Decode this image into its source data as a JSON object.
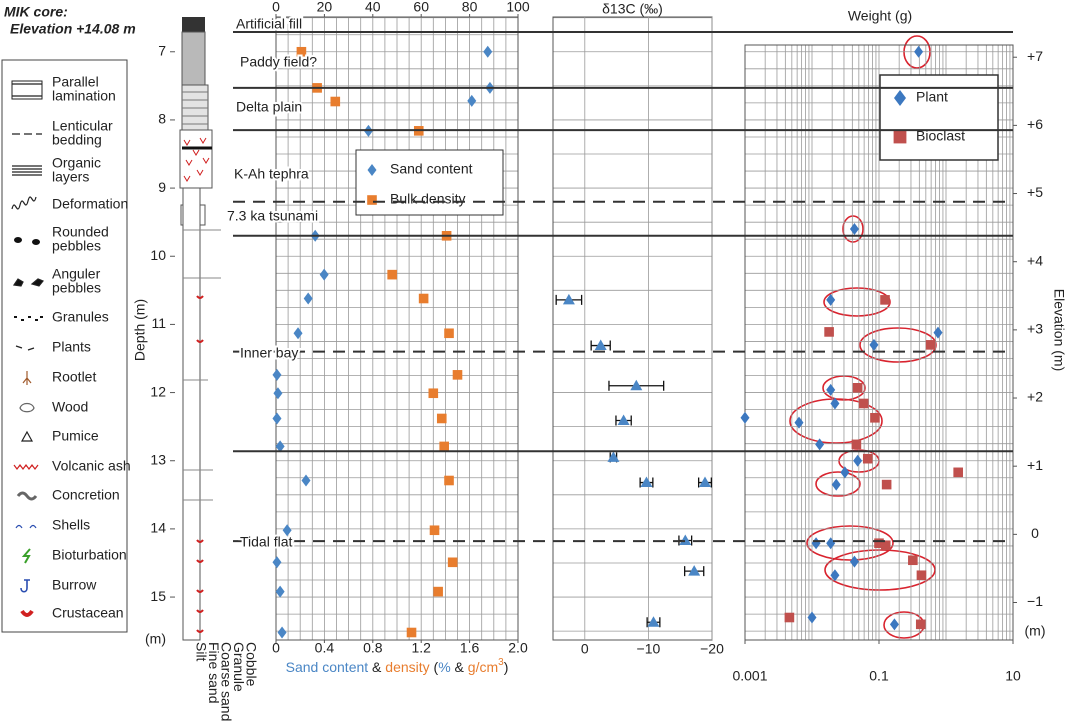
{
  "core_title": [
    "MIK core:",
    "Elevation +14.08 m"
  ],
  "lithology_legend": [
    [
      "Parallel",
      "lamination"
    ],
    [
      "Lenticular",
      "bedding"
    ],
    [
      "Organic",
      "layers"
    ],
    [
      "Deformation"
    ],
    [
      "Rounded",
      "pebbles"
    ],
    [
      "Anguler",
      "pebbles"
    ],
    [
      "Granules"
    ],
    [
      "Plants"
    ],
    [
      "Rootlet"
    ],
    [
      "Wood"
    ],
    [
      "Pumice"
    ],
    [
      "Volcanic ash"
    ],
    [
      "Concretion"
    ],
    [
      "Shells"
    ],
    [
      "Bioturbation"
    ],
    [
      "Burrow"
    ],
    [
      "Crustacean"
    ]
  ],
  "grain_sizes": [
    "Silt",
    "Fine sand",
    "Coarse sand",
    "Granule",
    "Cobble"
  ],
  "unit_labels": [
    "Artificial fill",
    "Paddy field?",
    "Delta plain",
    "K-Ah tephra",
    "7.3 ka tsunami",
    "Inner bay",
    "Tidal flat"
  ],
  "boundaries": [
    {
      "depth": 6.71,
      "style": "solid"
    },
    {
      "depth": 7.53,
      "style": "solid"
    },
    {
      "depth": 8.15,
      "style": "solid"
    },
    {
      "depth": 9.2,
      "style": "dashed"
    },
    {
      "depth": 9.7,
      "style": "solid"
    },
    {
      "depth": 11.4,
      "style": "dashed"
    },
    {
      "depth": 12.86,
      "style": "solid"
    },
    {
      "depth": 14.18,
      "style": "dashed"
    }
  ],
  "chart_data": [
    {
      "type": "scatter",
      "ylabel": "Depth (m)",
      "y_unit": "(m)",
      "ylim": [
        6.49,
        15.63
      ],
      "invert_y": true,
      "yticks": [
        7,
        8,
        9,
        10,
        11,
        12,
        13,
        14,
        15
      ],
      "xlim": [
        0,
        100
      ],
      "xticks": [
        0,
        20,
        40,
        60,
        80,
        100
      ],
      "xtick_color": "#4a86c5",
      "x2lim": [
        0,
        2.0
      ],
      "x2ticks": [
        0,
        0.4,
        0.8,
        1.2,
        1.6,
        {
          "value": 2.0,
          "label": "2.0"
        }
      ],
      "x2tick_color": "#e87d2e",
      "xlabel_parts": [
        {
          "text": "Sand content",
          "color": "#4a86c5"
        },
        {
          "text": " & "
        },
        {
          "text": "density",
          "color": "#e87d2e"
        },
        {
          "text": " ("
        },
        {
          "text": "%",
          "color": "#4a86c5"
        },
        {
          "text": " & "
        },
        {
          "text": "g/cm",
          "color": "#e87d2e"
        },
        {
          "text": "3",
          "color": "#e87d2e",
          "sup": true
        },
        {
          "text": ")"
        }
      ],
      "grid": true,
      "series": [
        {
          "name": "Sand content",
          "color": "#4a86c5",
          "marker": "diamond",
          "x": [
            87.5,
            88.4,
            80.9,
            38.2,
            16.2,
            19.9,
            13.3,
            9.1,
            0.4,
            0.8,
            0.4,
            1.7,
            12.4,
            4.6,
            0.4,
            1.7,
            2.5
          ],
          "y": [
            7.0,
            7.53,
            7.72,
            8.16,
            9.7,
            10.27,
            10.62,
            11.13,
            11.74,
            12.01,
            12.38,
            12.79,
            13.29,
            14.02,
            14.49,
            14.92,
            15.52
          ]
        },
        {
          "name": "Bulk density",
          "color": "#e87d2e",
          "marker": "square",
          "axis": "x2",
          "x": [
            0.21,
            0.34,
            0.49,
            1.18,
            1.41,
            0.96,
            1.22,
            1.43,
            1.5,
            1.3,
            1.37,
            1.39,
            1.43,
            1.31,
            1.46,
            1.34,
            1.12
          ],
          "y": [
            7.0,
            7.53,
            7.73,
            8.16,
            9.7,
            10.27,
            10.62,
            11.13,
            11.74,
            12.01,
            12.38,
            12.79,
            13.29,
            14.02,
            14.49,
            14.92,
            15.52
          ]
        }
      ]
    },
    {
      "type": "scatter",
      "title": "δ13C (‰)",
      "ylim": [
        6.49,
        15.63
      ],
      "invert_y": true,
      "xlim": [
        5,
        -20
      ],
      "xticks": [
        0,
        {
          "value": -10,
          "label": "−10"
        },
        {
          "value": -20,
          "label": "−20"
        }
      ],
      "grid": true,
      "series": [
        {
          "color": "#4a86c5",
          "marker": "triangle",
          "x": [
            2.5,
            -2.5,
            -8.1,
            -6.1,
            -4.5,
            -9.7,
            -18.9,
            -15.8,
            -17.2,
            -10.8
          ],
          "xerr": [
            2,
            1.5,
            4.3,
            1.2,
            0.5,
            1,
            1,
            1,
            1.5,
            1
          ],
          "y": [
            10.64,
            11.31,
            11.9,
            12.41,
            12.95,
            13.32,
            13.32,
            14.17,
            14.62,
            15.37
          ]
        }
      ]
    },
    {
      "type": "scatter",
      "title": "Weight (g)",
      "xscale": "log",
      "xlim": [
        0.001,
        10
      ],
      "xticks": [
        0.001,
        0.1,
        10
      ],
      "ylim": [
        6.49,
        15.63
      ],
      "invert_y": true,
      "y2label": "Elevation (m)",
      "y2_unit": "(m)",
      "y2lim": [
        7.59,
        -1.55
      ],
      "y2ticks": [
        {
          "value": 7,
          "label": "+7"
        },
        {
          "value": 6,
          "label": "+6"
        },
        {
          "value": 5,
          "label": "+5"
        },
        {
          "value": 4,
          "label": "+4"
        },
        {
          "value": 3,
          "label": "+3"
        },
        {
          "value": 2,
          "label": "+2"
        },
        {
          "value": 1,
          "label": "+1"
        },
        0,
        {
          "value": -1,
          "label": "−1"
        }
      ],
      "grid": true,
      "legend": "top-right",
      "series": [
        {
          "name": "Plant",
          "color": "#3c78c0",
          "marker": "diamond",
          "x": [
            0.39,
            0.043,
            0.019,
            0.76,
            0.084,
            0.019,
            0.022,
            0.001,
            0.0064,
            0.013,
            0.048,
            0.031,
            0.023,
            0.0115,
            0.019,
            0.043,
            0.022,
            0.01,
            0.17
          ],
          "y": [
            7.0,
            9.6,
            10.64,
            11.12,
            11.3,
            11.96,
            12.16,
            12.37,
            12.44,
            12.76,
            13.0,
            13.17,
            13.35,
            14.21,
            14.21,
            14.48,
            14.68,
            15.3,
            15.4
          ]
        },
        {
          "name": "Bioclast",
          "color": "#c0504d",
          "marker": "square",
          "x": [
            0.123,
            0.018,
            0.59,
            0.048,
            0.059,
            0.087,
            0.046,
            0.068,
            1.52,
            0.13,
            0.1,
            0.126,
            0.32,
            0.43,
            0.0046,
            0.42
          ],
          "y": [
            10.64,
            11.11,
            11.3,
            11.93,
            12.16,
            12.37,
            12.76,
            12.97,
            13.17,
            13.35,
            14.21,
            14.24,
            14.46,
            14.68,
            15.3,
            15.4
          ]
        }
      ]
    }
  ]
}
